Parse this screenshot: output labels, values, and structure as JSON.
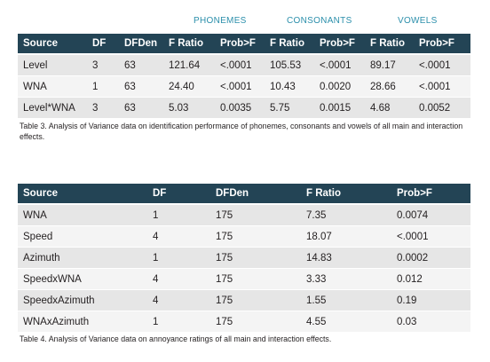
{
  "table3": {
    "group_headers": [
      "PHONEMES",
      "CONSONANTS",
      "VOWELS"
    ],
    "columns": [
      "Source",
      "DF",
      "DFDen",
      "F Ratio",
      "Prob>F",
      "F Ratio",
      "Prob>F",
      "F Ratio",
      "Prob>F"
    ],
    "rows": [
      [
        "Level",
        "3",
        "63",
        "121.64",
        "<.0001",
        "105.53",
        "<.0001",
        "89.17",
        "<.0001"
      ],
      [
        "WNA",
        "1",
        "63",
        "24.40",
        "<.0001",
        "10.43",
        "0.0020",
        "28.66",
        "<.0001"
      ],
      [
        "Level*WNA",
        "3",
        "63",
        "5.03",
        "0.0035",
        "5.75",
        "0.0015",
        "4.68",
        "0.0052"
      ]
    ],
    "caption": "Table 3. Analysis of Variance data on identification performance of phonemes, consonants and vowels of all main and interaction effects."
  },
  "table4": {
    "columns": [
      "Source",
      "DF",
      "DFDen",
      "F Ratio",
      "Prob>F"
    ],
    "rows": [
      [
        "WNA",
        "1",
        "175",
        "7.35",
        "0.0074"
      ],
      [
        "Speed",
        "4",
        "175",
        "18.07",
        "<.0001"
      ],
      [
        "Azimuth",
        "1",
        "175",
        "14.83",
        "0.0002"
      ],
      [
        "SpeedxWNA",
        "4",
        "175",
        "3.33",
        "0.012"
      ],
      [
        "SpeedxAzimuth",
        "4",
        "175",
        "1.55",
        "0.19"
      ],
      [
        "WNAxAzimuth",
        "1",
        "175",
        "4.55",
        "0.03"
      ]
    ],
    "caption": "Table 4. Analysis of Variance data on annoyance ratings of all main and interaction effects."
  },
  "colors": {
    "header_bg": "#234455",
    "group_header_text": "#2b8fab",
    "row_odd": "#e6e6e6",
    "row_even": "#f4f4f4"
  }
}
